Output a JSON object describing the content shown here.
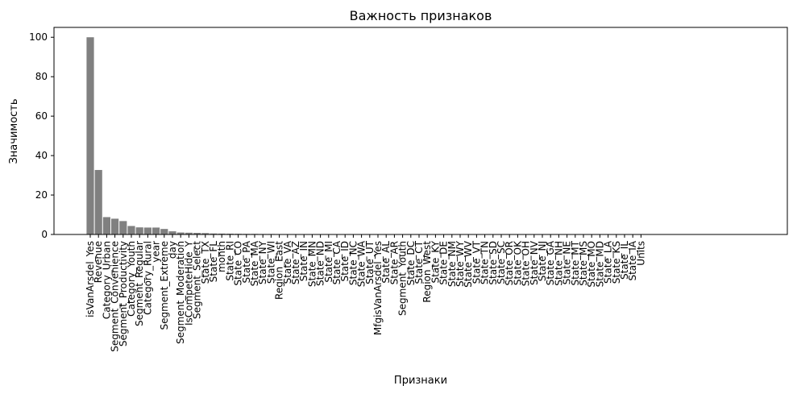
{
  "chart_data": {
    "type": "bar",
    "title": "Важность признаков",
    "xlabel": "Признаки",
    "ylabel": "Значимость",
    "ylim": [
      0,
      105
    ],
    "yticks": [
      0,
      20,
      40,
      60,
      80,
      100
    ],
    "grid": false,
    "bar_color": "#808080",
    "categories": [
      "isVanArsdel_Yes",
      "Revenue",
      "Category_Urban",
      "Segment_Convenience",
      "Segment_Productivity",
      "Category_Youth",
      "Segment_Regular",
      "Category_Rural",
      "year",
      "Segment_Extreme",
      "day",
      "Segment_Moderation",
      "IsCompeteHide_Y",
      "Segment_Select",
      "State_TX",
      "State_FL",
      "month",
      "State_RI",
      "State_CO",
      "State_PA",
      "State_MA",
      "State_NY",
      "State_WI",
      "Region_East",
      "State_VA",
      "State_AZ",
      "State_IN",
      "State_MN",
      "State_ND",
      "State_MI",
      "State_CA",
      "State_ID",
      "State_NC",
      "State_WA",
      "State_UT",
      "MfgisVanArsdel_Yes",
      "State_AL",
      "State_AR",
      "Segment_Youth",
      "State_DC",
      "State_CT",
      "Region_West",
      "State_KY",
      "State_DE",
      "State_NM",
      "State_WY",
      "State_WV",
      "State_VT",
      "State_TN",
      "State_SD",
      "State_SC",
      "State_OR",
      "State_OK",
      "State_OH",
      "State_NV",
      "State_NJ",
      "State_GA",
      "State_NH",
      "State_NE",
      "State_MT",
      "State_MS",
      "State_MO",
      "State_MD",
      "State_LA",
      "State_KS",
      "State_IL",
      "State_IA",
      "Units"
    ],
    "values": [
      100,
      32.7,
      8.8,
      8.0,
      6.8,
      4.3,
      3.6,
      3.5,
      3.5,
      2.8,
      1.6,
      1.0,
      0.9,
      0.8,
      0.7,
      0.5,
      0.45,
      0.4,
      0.35,
      0.3,
      0.3,
      0.25,
      0.25,
      0.2,
      0.2,
      0.15,
      0.12,
      0.1,
      0.1,
      0.08,
      0.08,
      0.07,
      0.06,
      0.05,
      0.05,
      0.04,
      0.04,
      0.03,
      0.03,
      0.03,
      0.02,
      0.02,
      0.02,
      0.02,
      0.01,
      0.01,
      0.01,
      0.01,
      0.01,
      0.01,
      0.01,
      0.01,
      0.01,
      0.01,
      0.01,
      0.01,
      0.01,
      0.01,
      0.01,
      0.01,
      0.01,
      0.01,
      0.01,
      0.01,
      0.01,
      0.01,
      0.01,
      0
    ]
  }
}
